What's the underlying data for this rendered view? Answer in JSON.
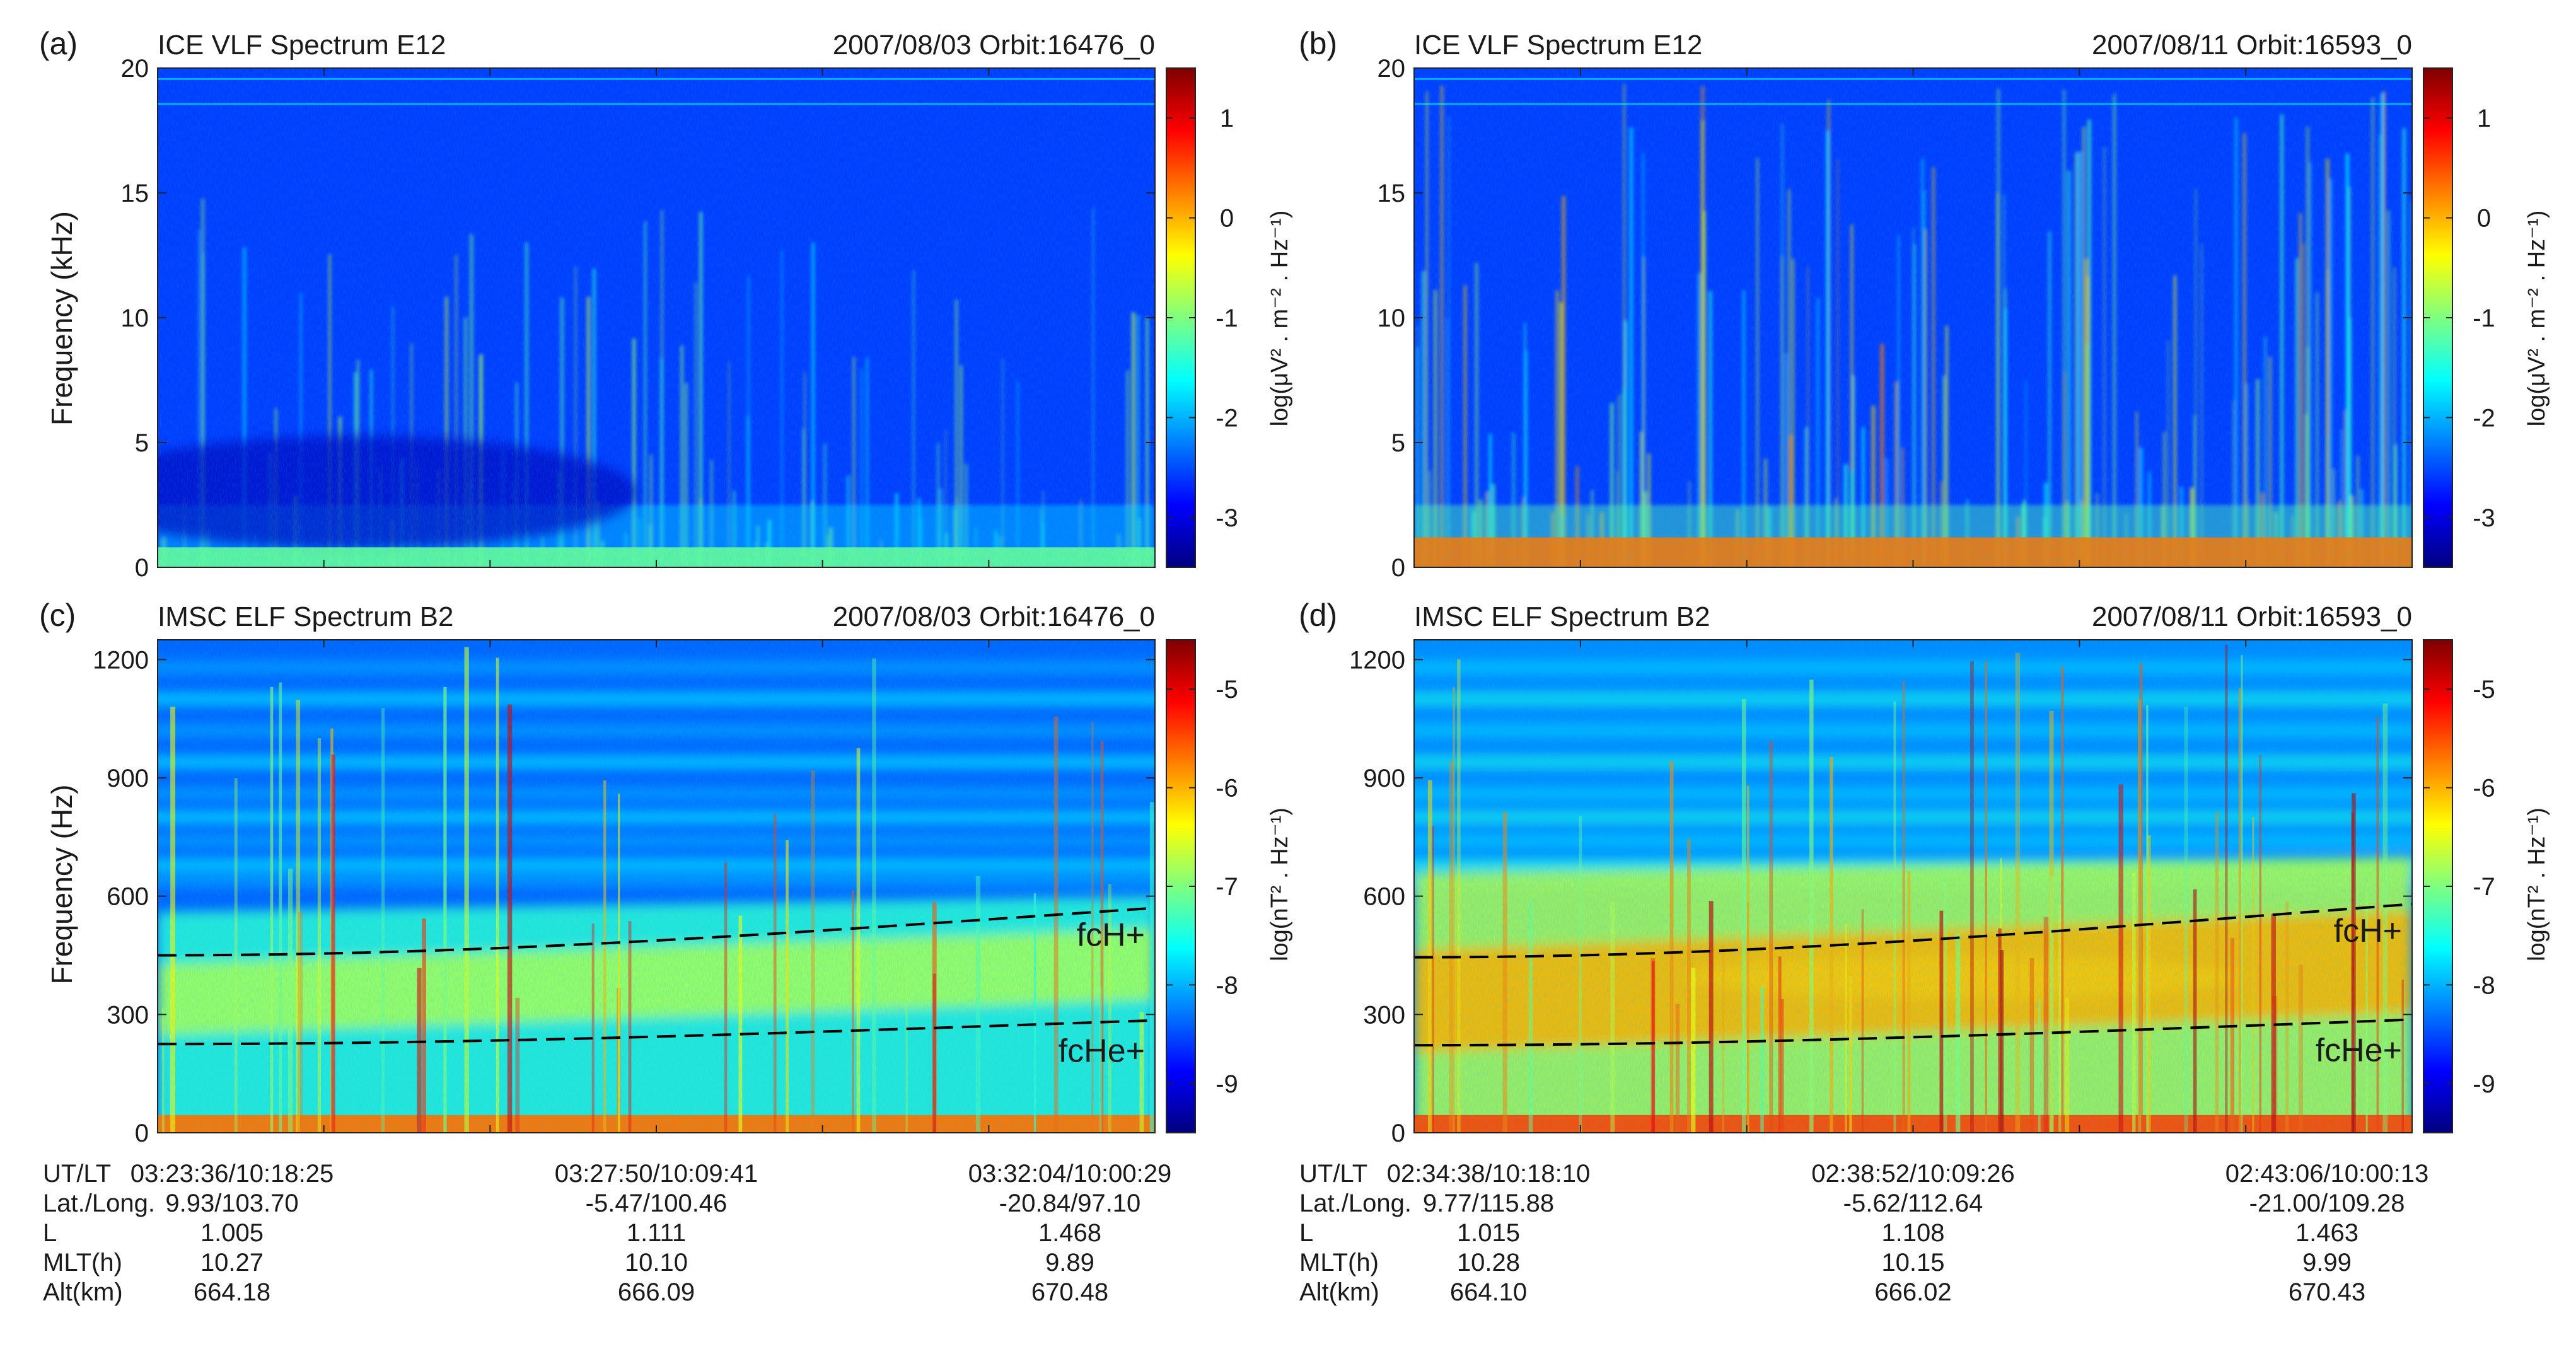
{
  "figure": {
    "colormap": [
      "#00007f",
      "#0000ff",
      "#007fff",
      "#00ffff",
      "#7fff7f",
      "#ffff00",
      "#ff7f00",
      "#ff0000",
      "#7f0000"
    ],
    "row_labels": [
      "UT/LT",
      "Lat./Long.",
      "L",
      "MLT(h)",
      "Alt(km)"
    ]
  },
  "chart_data": [
    {
      "panel": "(a)",
      "type": "heatmap",
      "title": "ICE VLF Spectrum E12",
      "subtitle": "2007/08/03 Orbit:16476_0",
      "ylabel": "Frequency (kHz)",
      "ylim": [
        0,
        20
      ],
      "yticks": [
        0,
        5,
        10,
        15,
        20
      ],
      "colorbar": {
        "label": "log(μV² . m⁻² . Hz⁻¹)",
        "range": [
          -3.5,
          1.5
        ],
        "ticks": [
          -3,
          -2,
          -1,
          0,
          1
        ]
      },
      "background_level": -2.6,
      "activity": "low",
      "lines": []
    },
    {
      "panel": "(b)",
      "type": "heatmap",
      "title": "ICE VLF Spectrum E12",
      "subtitle": "2007/08/11 Orbit:16593_0",
      "ylabel": "",
      "ylim": [
        0,
        20
      ],
      "yticks": [
        0,
        5,
        10,
        15,
        20
      ],
      "colorbar": {
        "label": "log(μV² . m⁻² . Hz⁻¹)",
        "range": [
          -3.5,
          1.5
        ],
        "ticks": [
          -3,
          -2,
          -1,
          0,
          1
        ]
      },
      "background_level": -2.6,
      "activity": "high",
      "lines": []
    },
    {
      "panel": "(c)",
      "type": "heatmap",
      "title": "IMSC ELF Spectrum B2",
      "subtitle": "2007/08/03 Orbit:16476_0",
      "ylabel": "Frequency (Hz)",
      "ylim": [
        0,
        1250
      ],
      "yticks": [
        0,
        300,
        600,
        900,
        1200
      ],
      "colorbar": {
        "label": "log(nT² . Hz⁻¹)",
        "range": [
          -9.5,
          -4.5
        ],
        "ticks": [
          -9,
          -8,
          -7,
          -6,
          -5
        ]
      },
      "background_level": -8.4,
      "activity": "medium",
      "lines": [
        {
          "name": "fcH+",
          "start": 450,
          "end": 570
        },
        {
          "name": "fcHe+",
          "start": 225,
          "end": 285
        }
      ],
      "x_axis": {
        "columns": [
          [
            "03:23:36/10:18:25",
            "9.93/103.70",
            "1.005",
            "10.27",
            "664.18"
          ],
          [
            "03:27:50/10:09:41",
            "-5.47/100.46",
            "1.111",
            "10.10",
            "666.09"
          ],
          [
            "03:32:04/10:00:29",
            "-20.84/97.10",
            "1.468",
            "9.89",
            "670.48"
          ]
        ]
      }
    },
    {
      "panel": "(d)",
      "type": "heatmap",
      "title": "IMSC ELF Spectrum B2",
      "subtitle": "2007/08/11 Orbit:16593_0",
      "ylabel": "",
      "ylim": [
        0,
        1250
      ],
      "yticks": [
        0,
        300,
        600,
        900,
        1200
      ],
      "colorbar": {
        "label": "log(nT² . Hz⁻¹)",
        "range": [
          -9.5,
          -4.5
        ],
        "ticks": [
          -9,
          -8,
          -7,
          -6,
          -5
        ]
      },
      "background_level": -8.2,
      "activity": "high",
      "lines": [
        {
          "name": "fcH+",
          "start": 445,
          "end": 580
        },
        {
          "name": "fcHe+",
          "start": 222,
          "end": 287
        }
      ],
      "x_axis": {
        "columns": [
          [
            "02:34:38/10:18:10",
            "9.77/115.88",
            "1.015",
            "10.28",
            "664.10"
          ],
          [
            "02:38:52/10:09:26",
            "-5.62/112.64",
            "1.108",
            "10.15",
            "666.02"
          ],
          [
            "02:43:06/10:00:13",
            "-21.00/109.28",
            "1.463",
            "9.99",
            "670.43"
          ]
        ]
      }
    }
  ]
}
